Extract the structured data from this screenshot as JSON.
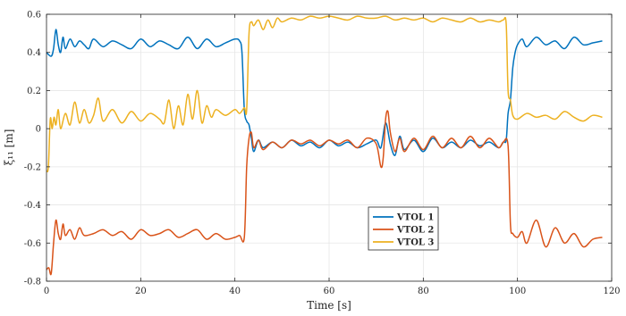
{
  "chart_data": {
    "type": "line",
    "title": "",
    "xlabel": "Time [s]",
    "ylabel": "ξ₁₁ [m]",
    "xlim": [
      0,
      120
    ],
    "ylim": [
      -0.8,
      0.6
    ],
    "grid": true,
    "legend_position": "bottom-center",
    "x_ticks": [
      0,
      20,
      40,
      60,
      80,
      100,
      120
    ],
    "x_tick_labels": [
      "0",
      "20",
      "40",
      "60",
      "80",
      "100",
      "120"
    ],
    "y_ticks": [
      -0.8,
      -0.6,
      -0.4,
      -0.2,
      0,
      0.2,
      0.4,
      0.6
    ],
    "y_tick_labels": [
      "-0.8",
      "-0.6",
      "-0.4",
      "-0.2",
      "0",
      "0.2",
      "0.4",
      "0.6"
    ],
    "series": [
      {
        "name": "VTOL 1",
        "color": "#0072BD",
        "x": [
          0,
          1,
          1.5,
          2,
          2.5,
          3,
          3.5,
          4,
          5,
          6,
          7,
          8,
          9,
          10,
          12,
          14,
          16,
          18,
          20,
          22,
          24,
          26,
          28,
          30,
          32,
          34,
          36,
          38,
          40,
          41,
          41.5,
          42,
          42.5,
          43,
          43.5,
          44,
          45,
          46,
          48,
          50,
          52,
          54,
          56,
          58,
          60,
          62,
          64,
          66,
          68,
          70,
          71,
          72,
          73,
          74,
          75,
          76,
          78,
          80,
          82,
          84,
          86,
          88,
          90,
          92,
          94,
          96,
          97,
          97.6,
          98,
          98.5,
          99,
          99.5,
          100,
          101,
          102,
          104,
          106,
          108,
          110,
          112,
          114,
          116,
          118
        ],
        "y": [
          0.4,
          0.38,
          0.42,
          0.52,
          0.44,
          0.4,
          0.48,
          0.42,
          0.47,
          0.43,
          0.46,
          0.44,
          0.42,
          0.47,
          0.43,
          0.46,
          0.44,
          0.42,
          0.47,
          0.43,
          0.46,
          0.44,
          0.42,
          0.48,
          0.42,
          0.47,
          0.43,
          0.45,
          0.47,
          0.46,
          0.4,
          0.1,
          0.04,
          0.02,
          -0.05,
          -0.12,
          -0.06,
          -0.1,
          -0.07,
          -0.1,
          -0.06,
          -0.09,
          -0.07,
          -0.1,
          -0.06,
          -0.09,
          -0.07,
          -0.1,
          -0.08,
          -0.06,
          -0.1,
          0.03,
          -0.08,
          -0.14,
          -0.04,
          -0.11,
          -0.06,
          -0.12,
          -0.05,
          -0.1,
          -0.07,
          -0.1,
          -0.06,
          -0.09,
          -0.07,
          -0.1,
          -0.07,
          -0.06,
          0.08,
          0.15,
          0.32,
          0.4,
          0.44,
          0.47,
          0.43,
          0.48,
          0.44,
          0.46,
          0.42,
          0.48,
          0.44,
          0.45,
          0.46
        ]
      },
      {
        "name": "VTOL 2",
        "color": "#D95319",
        "x": [
          0,
          0.5,
          1,
          1.5,
          2,
          2.5,
          3,
          3.5,
          4,
          5,
          6,
          7,
          8,
          10,
          12,
          14,
          16,
          18,
          20,
          22,
          24,
          26,
          28,
          30,
          32,
          34,
          36,
          38,
          40,
          41,
          42,
          42.5,
          43,
          43.5,
          44,
          45,
          46,
          48,
          50,
          52,
          54,
          56,
          58,
          60,
          62,
          64,
          66,
          68,
          70,
          71,
          71.5,
          72,
          72.5,
          73,
          74,
          75,
          76,
          78,
          80,
          82,
          84,
          86,
          88,
          90,
          92,
          94,
          96,
          97,
          98,
          98.5,
          99,
          100,
          101,
          102,
          104,
          106,
          108,
          110,
          112,
          114,
          116,
          118
        ],
        "y": [
          -0.74,
          -0.73,
          -0.76,
          -0.6,
          -0.48,
          -0.55,
          -0.58,
          -0.5,
          -0.56,
          -0.53,
          -0.58,
          -0.52,
          -0.56,
          -0.55,
          -0.53,
          -0.56,
          -0.54,
          -0.58,
          -0.53,
          -0.56,
          -0.55,
          -0.53,
          -0.57,
          -0.55,
          -0.53,
          -0.58,
          -0.55,
          -0.58,
          -0.57,
          -0.56,
          -0.57,
          -0.2,
          -0.05,
          -0.02,
          -0.1,
          -0.06,
          -0.11,
          -0.07,
          -0.1,
          -0.06,
          -0.08,
          -0.06,
          -0.09,
          -0.06,
          -0.08,
          -0.06,
          -0.1,
          -0.05,
          -0.08,
          -0.2,
          -0.15,
          0.05,
          0.09,
          -0.02,
          -0.12,
          -0.05,
          -0.12,
          -0.05,
          -0.11,
          -0.04,
          -0.1,
          -0.05,
          -0.1,
          -0.04,
          -0.1,
          -0.05,
          -0.1,
          -0.07,
          -0.09,
          -0.5,
          -0.55,
          -0.57,
          -0.54,
          -0.6,
          -0.48,
          -0.62,
          -0.52,
          -0.6,
          -0.55,
          -0.62,
          -0.58,
          -0.57
        ]
      },
      {
        "name": "VTOL 3",
        "color": "#EDB120",
        "x": [
          0,
          0.4,
          0.8,
          1.2,
          1.6,
          2,
          2.5,
          3,
          4,
          5,
          6,
          7,
          8,
          9,
          10,
          11,
          12,
          14,
          16,
          18,
          20,
          22,
          24,
          25,
          26,
          27,
          28,
          29,
          30,
          31,
          32,
          33,
          34,
          35,
          36,
          38,
          40,
          41,
          42,
          42.5,
          43,
          43.5,
          44,
          45,
          46,
          47,
          48,
          49,
          50,
          52,
          54,
          56,
          58,
          60,
          62,
          64,
          66,
          68,
          70,
          72,
          74,
          76,
          78,
          80,
          82,
          84,
          86,
          88,
          90,
          92,
          94,
          96,
          97,
          97.6,
          98,
          98.5,
          99,
          100,
          102,
          104,
          106,
          108,
          110,
          112,
          114,
          116,
          118
        ],
        "y": [
          -0.22,
          -0.2,
          0.05,
          0.0,
          0.06,
          0.02,
          0.1,
          0.0,
          0.08,
          0.02,
          0.14,
          0.03,
          0.1,
          0.03,
          0.07,
          0.16,
          0.04,
          0.1,
          0.03,
          0.09,
          0.04,
          0.08,
          0.05,
          0.03,
          0.15,
          0.0,
          0.12,
          0.02,
          0.18,
          0.05,
          0.2,
          0.03,
          0.12,
          0.06,
          0.1,
          0.07,
          0.1,
          0.08,
          0.11,
          0.1,
          0.5,
          0.56,
          0.54,
          0.57,
          0.52,
          0.57,
          0.53,
          0.58,
          0.56,
          0.58,
          0.57,
          0.59,
          0.58,
          0.59,
          0.58,
          0.57,
          0.59,
          0.58,
          0.58,
          0.59,
          0.57,
          0.58,
          0.57,
          0.58,
          0.56,
          0.58,
          0.57,
          0.56,
          0.58,
          0.56,
          0.57,
          0.56,
          0.57,
          0.55,
          0.2,
          0.15,
          0.07,
          0.05,
          0.08,
          0.06,
          0.07,
          0.05,
          0.09,
          0.06,
          0.04,
          0.07,
          0.06
        ]
      }
    ]
  }
}
